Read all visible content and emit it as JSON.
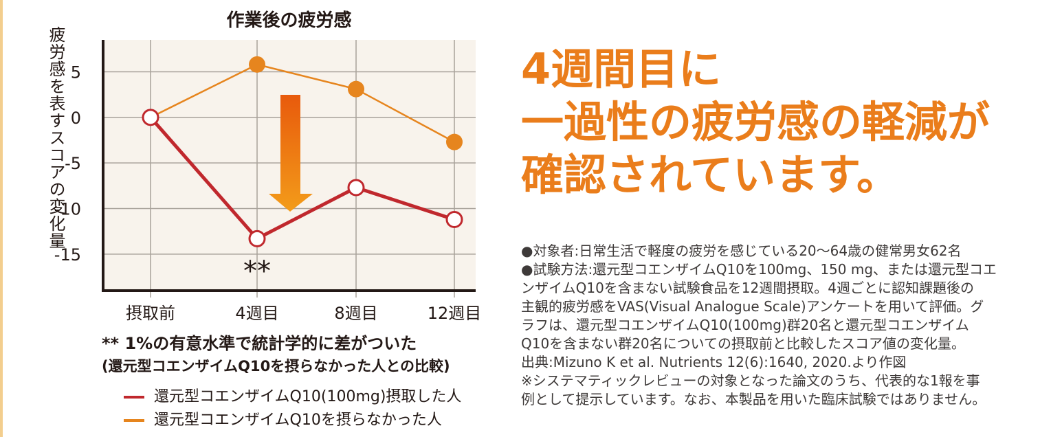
{
  "chart_data": {
    "type": "line",
    "title": "作業後の疲労感",
    "xlabel": "",
    "ylabel": "疲労感を表すスコアの変化量",
    "categories": [
      "摂取前",
      "4週目",
      "8週目",
      "12週目"
    ],
    "ylim": [
      -19,
      8.5
    ],
    "yticks": [
      5,
      0,
      -5,
      -10,
      -15
    ],
    "ytick_labels": [
      "5",
      "0",
      "-5",
      "-10",
      "-15"
    ],
    "grid": true,
    "legend_position": "bottom-left",
    "significance_marker": "**",
    "significance_category": "4週目",
    "series": [
      {
        "name": "還元型コエンザイムQ10(100mg)摂取した人",
        "values": [
          0,
          -13.3,
          -7.7,
          -11.2
        ],
        "color": "#c0282d",
        "marker": "open-circle"
      },
      {
        "name": "還元型コエンザイムQ10を摂らなかった人",
        "values": [
          0,
          5.8,
          3.1,
          -2.7
        ],
        "color": "#e6851e",
        "marker": "filled-circle"
      }
    ]
  },
  "notes": {
    "significance_line1": "** 1%の有意水準で統計学的に差がついた",
    "significance_line2": "(還元型コエンザイムQ10を摂らなかった人との比較)"
  },
  "headline": {
    "line1": "4週間目に",
    "line2": "一過性の疲労感の軽減が",
    "line3": "確認されています。"
  },
  "study": {
    "lines": [
      "●対象者:日常生活で軽度の疲労を感じている20〜64歳の健常男女62名",
      "●試験方法:還元型コエンザイムQ10を100mg、150 mg、または還元型コエ",
      "ンザイムQ10を含まない試験食品を12週間摂取。4週ごとに認知課題後の",
      "主観的疲労感をVAS(Visual Analogue Scale)アンケートを用いて評価。グ",
      "ラフは、還元型コエンザイムQ10(100mg)群20名と還元型コエンザイム",
      "Q10を含まない群20名についての摂取前と比較したスコア値の変化量。",
      "出典:Mizuno K et al. Nutrients 12(6):1640, 2020.より作図",
      "※システマティックレビューの対象となった論文のうち、代表的な1報を事",
      "例として提示しています。なお、本製品を用いた臨床試験ではありません。"
    ]
  },
  "colors": {
    "plot_bg": "#f8f3ec",
    "grid": "#a8a29a",
    "axis": "#231815",
    "accent_orange": "#ea7d1b",
    "arrow_top": "#e85a0c",
    "arrow_bottom": "#f39c1a",
    "left_border": "#f3ce8e"
  }
}
